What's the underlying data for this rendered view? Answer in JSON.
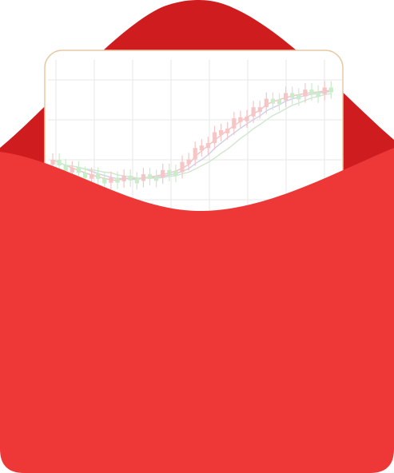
{
  "illustration": {
    "subject": "red-envelope-with-stock-chart-card",
    "colors": {
      "envelope_front": "#ee3737",
      "envelope_back": "#cf1c1e",
      "envelope_back_highlight": "#dc2022",
      "card_background": "#ffffff",
      "card_border": "#e9c9a4",
      "chart_grid": "#e7e7ea",
      "candle_up": "#f6c5c5",
      "candle_down": "#c9ecc9",
      "ma_line_1": "#f2c2c2",
      "ma_line_2": "#cfd0ea",
      "ma_line_3": "#cfe6cf"
    },
    "icons": [
      "envelope-icon",
      "candlestick-chart-icon"
    ]
  }
}
